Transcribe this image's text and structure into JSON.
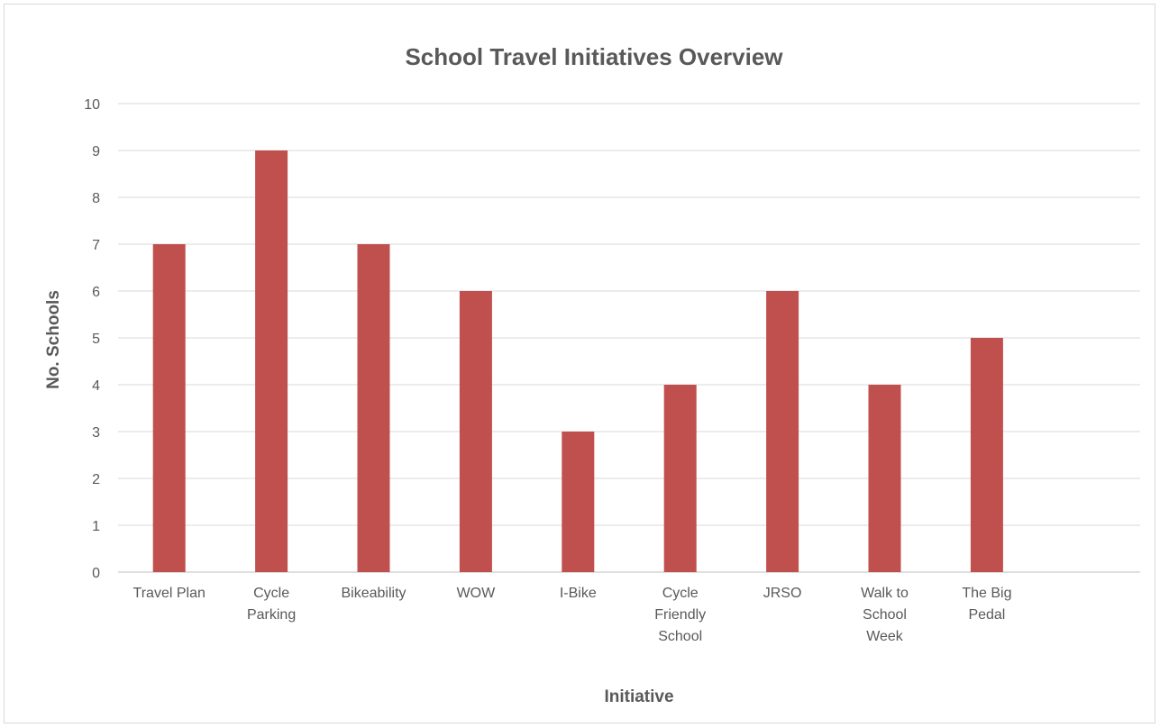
{
  "chart_data": {
    "type": "bar",
    "title": "School Travel Initiatives Overview",
    "xlabel": "Initiative",
    "ylabel": "No. Schools",
    "categories": [
      [
        "Travel Plan"
      ],
      [
        "Cycle",
        "Parking"
      ],
      [
        "Bikeability"
      ],
      [
        "WOW"
      ],
      [
        "I-Bike"
      ],
      [
        "Cycle",
        "Friendly",
        "School"
      ],
      [
        "JRSO"
      ],
      [
        "Walk to",
        "School",
        "Week"
      ],
      [
        "The Big",
        "Pedal"
      ],
      [
        ""
      ]
    ],
    "values": [
      7,
      9,
      7,
      6,
      3,
      4,
      6,
      4,
      5,
      null
    ],
    "ylim": [
      0,
      10
    ],
    "yticks": [
      0,
      1,
      2,
      3,
      4,
      5,
      6,
      7,
      8,
      9,
      10
    ],
    "grid": true,
    "legend": "none",
    "bar_color": "#c0504d"
  }
}
